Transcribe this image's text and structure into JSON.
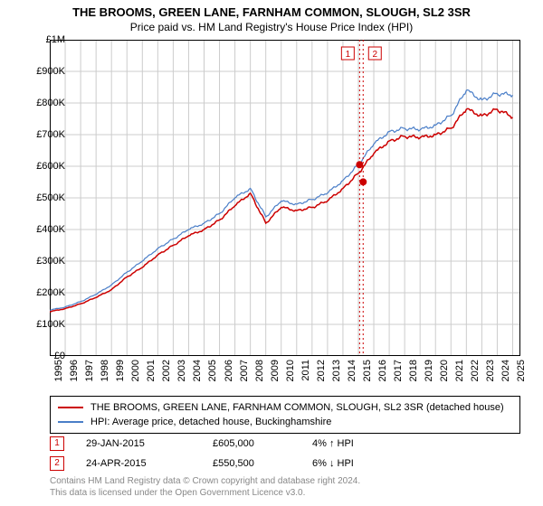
{
  "title": "THE BROOMS, GREEN LANE, FARNHAM COMMON, SLOUGH, SL2 3SR",
  "subtitle": "Price paid vs. HM Land Registry's House Price Index (HPI)",
  "chart": {
    "type": "line",
    "background_color": "#ffffff",
    "grid_color": "#cccccc",
    "border_color": "#000000",
    "xlim": [
      1995,
      2025.5
    ],
    "ylim": [
      0,
      1000000
    ],
    "ytick_step": 100000,
    "yticks": [
      {
        "v": 0,
        "label": "£0"
      },
      {
        "v": 100000,
        "label": "£100K"
      },
      {
        "v": 200000,
        "label": "£200K"
      },
      {
        "v": 300000,
        "label": "£300K"
      },
      {
        "v": 400000,
        "label": "£400K"
      },
      {
        "v": 500000,
        "label": "£500K"
      },
      {
        "v": 600000,
        "label": "£600K"
      },
      {
        "v": 700000,
        "label": "£700K"
      },
      {
        "v": 800000,
        "label": "£800K"
      },
      {
        "v": 900000,
        "label": "£900K"
      },
      {
        "v": 1000000,
        "label": "£1M"
      }
    ],
    "xticks": [
      1995,
      1996,
      1997,
      1998,
      1999,
      2000,
      2001,
      2002,
      2003,
      2004,
      2005,
      2006,
      2007,
      2008,
      2009,
      2010,
      2011,
      2012,
      2013,
      2014,
      2015,
      2016,
      2017,
      2018,
      2019,
      2020,
      2021,
      2022,
      2023,
      2024,
      2025
    ],
    "series": [
      {
        "name": "price_paid",
        "label": "THE BROOMS, GREEN LANE, FARNHAM COMMON, SLOUGH, SL2 3SR (detached house)",
        "color": "#cc0000",
        "line_width": 1.5,
        "x": [
          1995,
          1996,
          1997,
          1998,
          1999,
          2000,
          2001,
          2002,
          2003,
          2004,
          2005,
          2006,
          2007,
          2008,
          2009,
          2010,
          2011,
          2012,
          2013,
          2014,
          2015,
          2016,
          2017,
          2018,
          2019,
          2020,
          2021,
          2022,
          2023,
          2024,
          2025
        ],
        "y": [
          140000,
          150000,
          165000,
          185000,
          210000,
          250000,
          280000,
          320000,
          350000,
          380000,
          400000,
          430000,
          475000,
          515000,
          420000,
          470000,
          460000,
          470000,
          490000,
          530000,
          578000,
          640000,
          680000,
          695000,
          690000,
          700000,
          720000,
          780000,
          760000,
          780000,
          755000
        ]
      },
      {
        "name": "hpi",
        "label": "HPI: Average price, detached house, Buckinghamshire",
        "color": "#4a7ec8",
        "line_width": 1.2,
        "x": [
          1995,
          1996,
          1997,
          1998,
          1999,
          2000,
          2001,
          2002,
          2003,
          2004,
          2005,
          2006,
          2007,
          2008,
          2009,
          2010,
          2011,
          2012,
          2013,
          2014,
          2015,
          2016,
          2017,
          2018,
          2019,
          2020,
          2021,
          2022,
          2023,
          2024,
          2025
        ],
        "y": [
          145000,
          155000,
          172000,
          195000,
          225000,
          265000,
          300000,
          340000,
          370000,
          400000,
          420000,
          450000,
          500000,
          530000,
          440000,
          490000,
          480000,
          495000,
          515000,
          555000,
          605000,
          670000,
          710000,
          720000,
          715000,
          730000,
          760000,
          840000,
          810000,
          830000,
          825000
        ]
      }
    ],
    "sale_markers": [
      {
        "n": "1",
        "x": 2015.08,
        "y": 605000
      },
      {
        "n": "2",
        "x": 2015.31,
        "y": 550500
      }
    ],
    "marker_line_color": "#cc0000",
    "marker_dot_color": "#cc0000",
    "axis_fontsize": 11,
    "title_fontsize": 13
  },
  "legend": {
    "items": [
      {
        "color": "#cc0000",
        "label": "THE BROOMS, GREEN LANE, FARNHAM COMMON, SLOUGH, SL2 3SR (detached house)"
      },
      {
        "color": "#4a7ec8",
        "label": "HPI: Average price, detached house, Buckinghamshire"
      }
    ]
  },
  "sales": [
    {
      "n": "1",
      "date": "29-JAN-2015",
      "price": "£605,000",
      "delta": "4% ↑ HPI"
    },
    {
      "n": "2",
      "date": "24-APR-2015",
      "price": "£550,500",
      "delta": "6% ↓ HPI"
    }
  ],
  "footer": {
    "line1": "Contains HM Land Registry data © Crown copyright and database right 2024.",
    "line2": "This data is licensed under the Open Government Licence v3.0."
  }
}
